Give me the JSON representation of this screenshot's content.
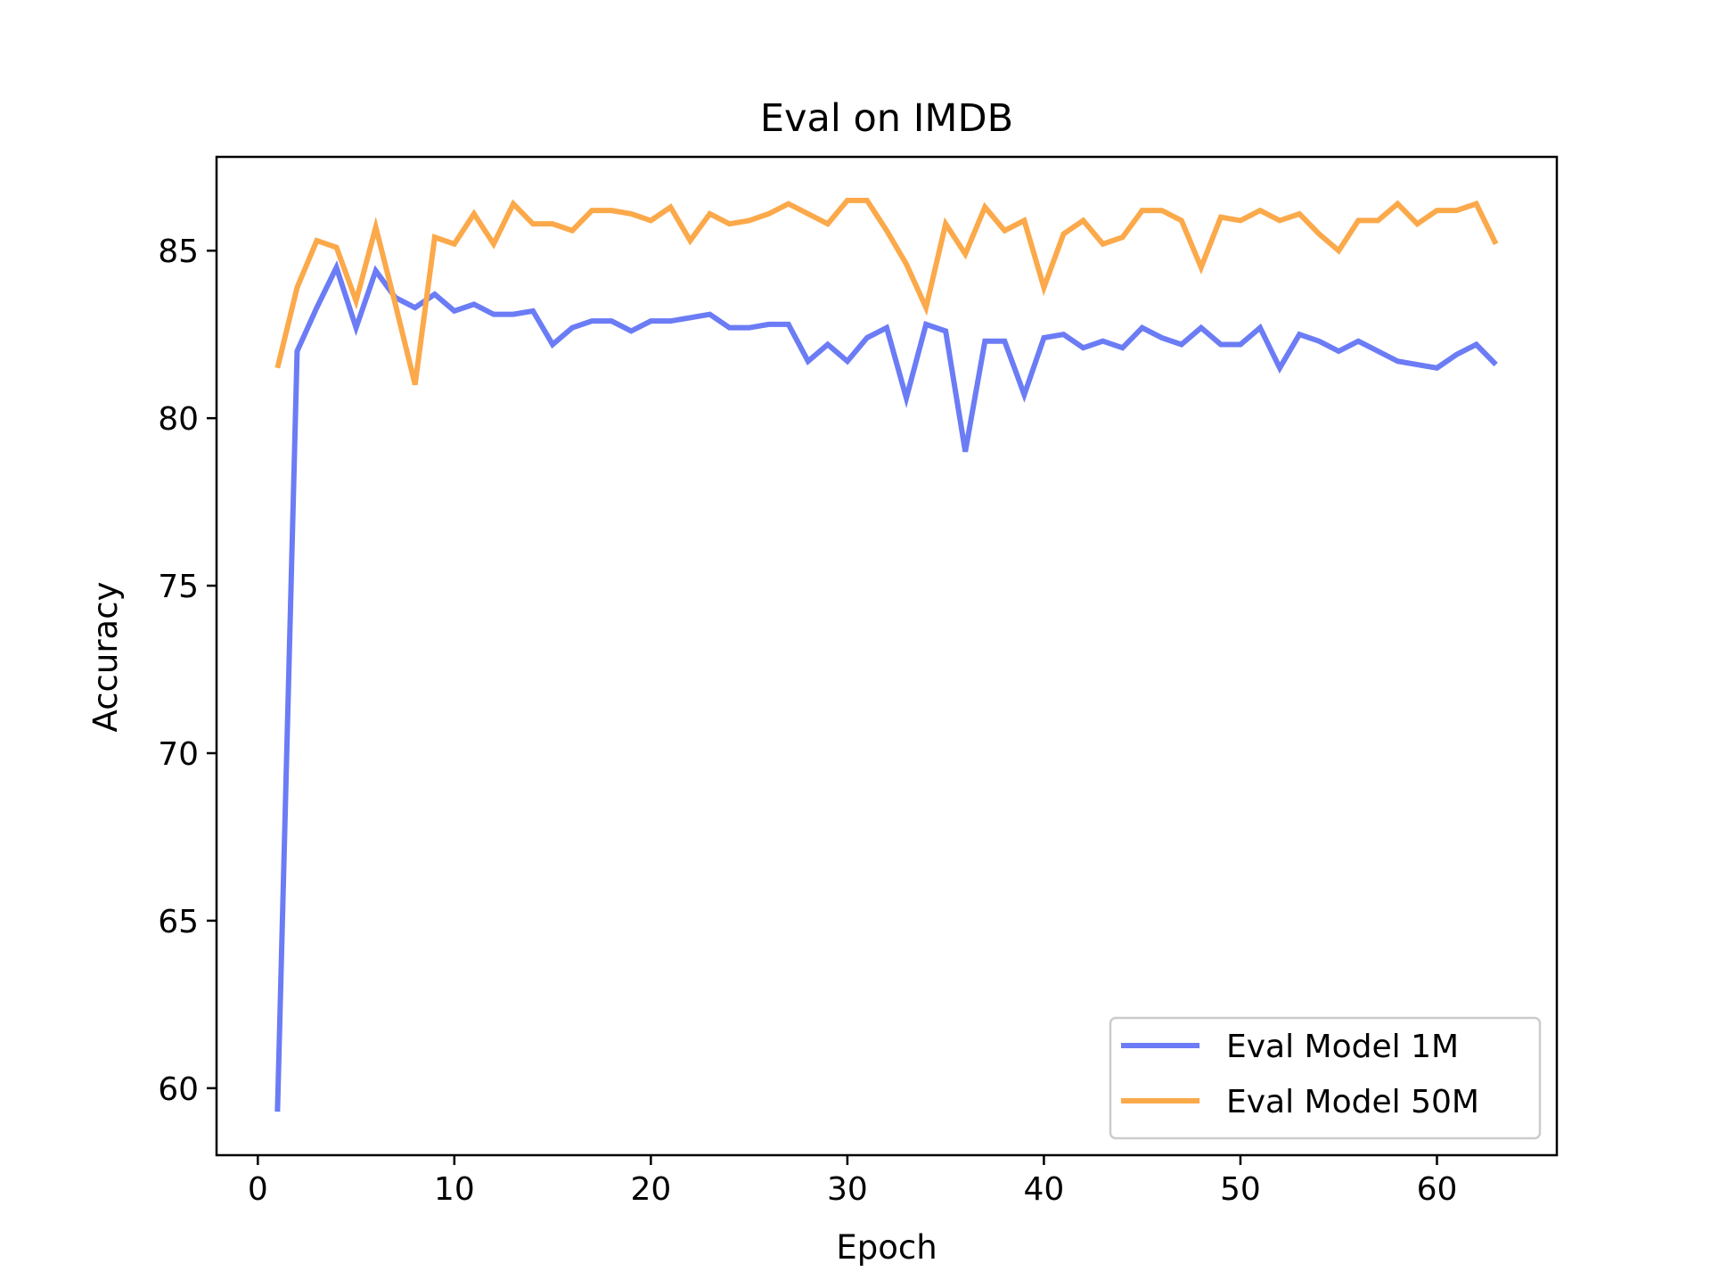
{
  "chart_data": {
    "type": "line",
    "title": "Eval on IMDB",
    "xlabel": "Epoch",
    "ylabel": "Accuracy",
    "xlim": [
      -2.1,
      66.1
    ],
    "ylim": [
      58.0,
      87.8
    ],
    "xticks": [
      0,
      10,
      20,
      30,
      40,
      50,
      60
    ],
    "yticks": [
      60,
      65,
      70,
      75,
      80,
      85
    ],
    "grid": false,
    "legend_position": "lower-right",
    "series": [
      {
        "name": "Eval Model 1M",
        "color": "#6b7cf5",
        "x": [
          1,
          2,
          3,
          4,
          5,
          6,
          7,
          8,
          9,
          10,
          11,
          12,
          13,
          14,
          15,
          16,
          17,
          18,
          19,
          20,
          21,
          22,
          23,
          24,
          25,
          26,
          27,
          28,
          29,
          30,
          31,
          32,
          33,
          34,
          35,
          36,
          37,
          38,
          39,
          40,
          41,
          42,
          43,
          44,
          45,
          46,
          47,
          48,
          49,
          50,
          51,
          52,
          53,
          54,
          55,
          56,
          57,
          58,
          59,
          60,
          61,
          62,
          63
        ],
        "values": [
          59.3,
          82.0,
          83.3,
          84.5,
          82.7,
          84.4,
          83.6,
          83.3,
          83.7,
          83.2,
          83.4,
          83.1,
          83.1,
          83.2,
          82.2,
          82.7,
          82.9,
          82.9,
          82.6,
          82.9,
          82.9,
          83.0,
          83.1,
          82.7,
          82.7,
          82.8,
          82.8,
          81.7,
          82.2,
          81.7,
          82.4,
          82.7,
          80.6,
          82.8,
          82.6,
          79.0,
          82.3,
          82.3,
          80.7,
          82.4,
          82.5,
          82.1,
          82.3,
          82.1,
          82.7,
          82.4,
          82.2,
          82.7,
          82.2,
          82.2,
          82.7,
          81.5,
          82.5,
          82.3,
          82.0,
          82.3,
          82.0,
          81.7,
          81.6,
          81.5,
          81.9,
          82.2,
          81.6
        ]
      },
      {
        "name": "Eval Model 50M",
        "color": "#fba94a",
        "x": [
          1,
          2,
          3,
          4,
          5,
          6,
          7,
          8,
          9,
          10,
          11,
          12,
          13,
          14,
          15,
          16,
          17,
          18,
          19,
          20,
          21,
          22,
          23,
          24,
          25,
          26,
          27,
          28,
          29,
          30,
          31,
          32,
          33,
          34,
          35,
          36,
          37,
          38,
          39,
          40,
          41,
          42,
          43,
          44,
          45,
          46,
          47,
          48,
          49,
          50,
          51,
          52,
          53,
          54,
          55,
          56,
          57,
          58,
          59,
          60,
          61,
          62,
          63
        ],
        "values": [
          81.5,
          83.9,
          85.3,
          85.1,
          83.5,
          85.7,
          83.4,
          81.0,
          85.4,
          85.2,
          86.1,
          85.2,
          86.4,
          85.8,
          85.8,
          85.6,
          86.2,
          86.2,
          86.1,
          85.9,
          86.3,
          85.3,
          86.1,
          85.8,
          85.9,
          86.1,
          86.4,
          86.1,
          85.8,
          86.5,
          86.5,
          85.6,
          84.6,
          83.3,
          85.8,
          84.9,
          86.3,
          85.6,
          85.9,
          83.9,
          85.5,
          85.9,
          85.2,
          85.4,
          86.2,
          86.2,
          85.9,
          84.5,
          86.0,
          85.9,
          86.2,
          85.9,
          86.1,
          85.5,
          85.0,
          85.9,
          85.9,
          86.4,
          85.8,
          86.2,
          86.2,
          86.4,
          85.2
        ]
      }
    ]
  }
}
